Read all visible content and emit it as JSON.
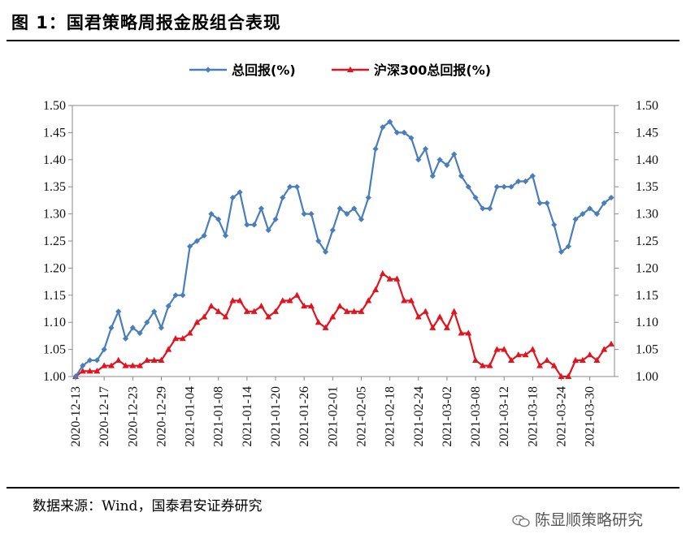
{
  "header": {
    "title": "图 1：国君策略周报金股组合表现"
  },
  "footer": {
    "source": "数据来源：Wind，国泰君安证券研究",
    "watermark": "陈显顺策略研究",
    "watermark_icon": "wechat-icon"
  },
  "chart_data": {
    "type": "line",
    "title": "",
    "ylim": [
      1.0,
      1.5
    ],
    "yticks": [
      "1.00",
      "1.05",
      "1.10",
      "1.15",
      "1.20",
      "1.25",
      "1.30",
      "1.35",
      "1.40",
      "1.45",
      "1.50"
    ],
    "y2lim": [
      1.0,
      1.5
    ],
    "grid": false,
    "legend_position": "top-center",
    "x_tick_labels": [
      "2020-12-13",
      "2020-12-17",
      "2020-12-23",
      "2020-12-29",
      "2021-01-04",
      "2021-01-08",
      "2021-01-14",
      "2021-01-20",
      "2021-01-26",
      "2021-02-01",
      "2021-02-05",
      "2021-02-18",
      "2021-02-24",
      "2021-03-02",
      "2021-03-08",
      "2021-03-12",
      "2021-03-18",
      "2021-03-24",
      "2021-03-30"
    ],
    "x_tick_index": [
      0,
      4,
      8,
      12,
      16,
      20,
      24,
      28,
      32,
      36,
      40,
      44,
      48,
      52,
      56,
      60,
      64,
      68,
      72
    ],
    "series": [
      {
        "name": "总回报(%)",
        "color": "#4a7ebb",
        "marker": "diamond",
        "values": [
          1.0,
          1.02,
          1.03,
          1.03,
          1.05,
          1.09,
          1.12,
          1.07,
          1.09,
          1.08,
          1.1,
          1.12,
          1.09,
          1.13,
          1.15,
          1.15,
          1.24,
          1.25,
          1.26,
          1.3,
          1.29,
          1.26,
          1.33,
          1.34,
          1.28,
          1.28,
          1.31,
          1.27,
          1.29,
          1.33,
          1.35,
          1.35,
          1.3,
          1.3,
          1.25,
          1.23,
          1.27,
          1.31,
          1.3,
          1.31,
          1.29,
          1.33,
          1.42,
          1.46,
          1.47,
          1.45,
          1.45,
          1.44,
          1.4,
          1.42,
          1.37,
          1.4,
          1.39,
          1.41,
          1.37,
          1.35,
          1.33,
          1.31,
          1.31,
          1.35,
          1.35,
          1.35,
          1.36,
          1.36,
          1.37,
          1.32,
          1.32,
          1.28,
          1.23,
          1.24,
          1.29,
          1.3,
          1.31,
          1.3,
          1.32,
          1.33
        ]
      },
      {
        "name": "沪深300总回报(%)",
        "color": "#e0141e",
        "marker": "triangle",
        "values": [
          1.0,
          1.01,
          1.01,
          1.01,
          1.02,
          1.02,
          1.03,
          1.02,
          1.02,
          1.02,
          1.03,
          1.03,
          1.03,
          1.05,
          1.07,
          1.07,
          1.08,
          1.1,
          1.11,
          1.13,
          1.12,
          1.11,
          1.14,
          1.14,
          1.12,
          1.12,
          1.13,
          1.11,
          1.12,
          1.14,
          1.14,
          1.15,
          1.13,
          1.13,
          1.1,
          1.09,
          1.11,
          1.13,
          1.12,
          1.12,
          1.12,
          1.14,
          1.16,
          1.19,
          1.18,
          1.18,
          1.14,
          1.14,
          1.11,
          1.12,
          1.09,
          1.11,
          1.09,
          1.12,
          1.08,
          1.08,
          1.03,
          1.02,
          1.02,
          1.05,
          1.05,
          1.03,
          1.04,
          1.04,
          1.05,
          1.02,
          1.03,
          1.02,
          1.0,
          1.0,
          1.03,
          1.03,
          1.04,
          1.03,
          1.05,
          1.06
        ]
      }
    ]
  }
}
